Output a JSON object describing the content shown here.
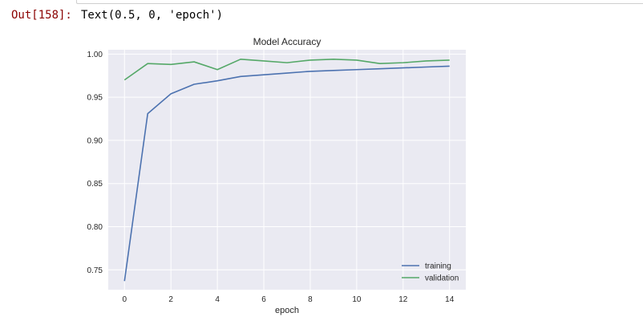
{
  "output": {
    "prompt": "Out[158]:",
    "text": "Text(0.5, 0, 'epoch')"
  },
  "chart_data": {
    "type": "line",
    "title": "Model Accuracy",
    "xlabel": "epoch",
    "ylabel": "",
    "xlim": [
      -0.7,
      14.7
    ],
    "ylim": [
      0.727,
      1.005
    ],
    "xticks": [
      0,
      2,
      4,
      6,
      8,
      10,
      12,
      14
    ],
    "yticks": [
      0.75,
      0.8,
      0.85,
      0.9,
      0.95,
      1.0
    ],
    "ytick_labels": [
      "0.75",
      "0.80",
      "0.85",
      "0.90",
      "0.95",
      "1.00"
    ],
    "x": [
      0,
      1,
      2,
      3,
      4,
      5,
      6,
      7,
      8,
      9,
      10,
      11,
      12,
      13,
      14
    ],
    "series": [
      {
        "name": "training",
        "color": "#4c72b0",
        "values": [
          0.737,
          0.931,
          0.954,
          0.965,
          0.969,
          0.974,
          0.976,
          0.978,
          0.98,
          0.981,
          0.982,
          0.983,
          0.984,
          0.985,
          0.986
        ]
      },
      {
        "name": "validation",
        "color": "#55a868",
        "values": [
          0.97,
          0.989,
          0.988,
          0.991,
          0.982,
          0.994,
          0.992,
          0.99,
          0.993,
          0.994,
          0.993,
          0.989,
          0.99,
          0.992,
          0.993
        ]
      }
    ],
    "grid": true,
    "legend_position": "lower-right",
    "background": "#eaeaf2",
    "grid_color": "#ffffff"
  }
}
